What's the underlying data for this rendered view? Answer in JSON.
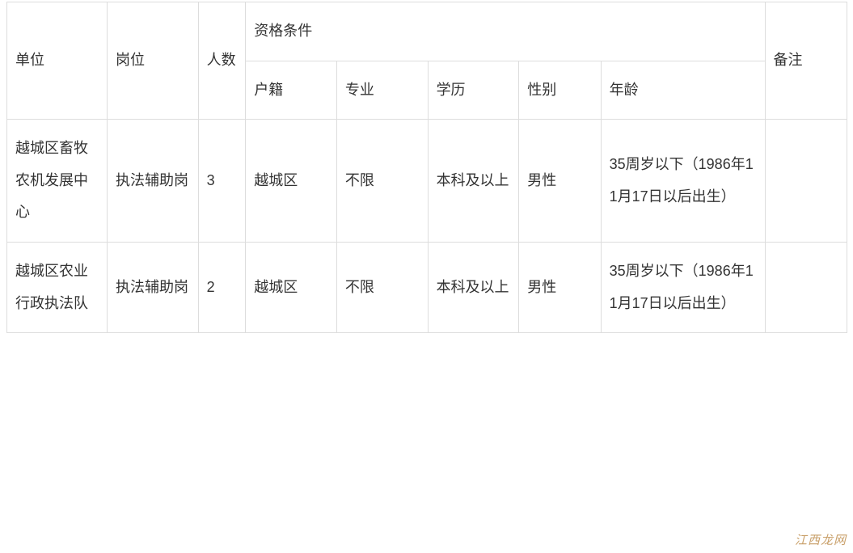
{
  "table": {
    "border_color": "#dddddd",
    "background_color": "#ffffff",
    "font_size": 18,
    "line_height": 2.2,
    "text_color": "#333333",
    "header": {
      "unit": "单位",
      "post": "岗位",
      "count": "人数",
      "qualify_group": "资格条件",
      "note": "备注",
      "sub": {
        "huji": "户籍",
        "zhuanye": "专业",
        "xueli": "学历",
        "gender": "性别",
        "age": "年龄"
      }
    },
    "rows": [
      {
        "unit": "越城区畜牧农机发展中心",
        "post": "执法辅助岗",
        "count": "3",
        "huji": "越城区",
        "zhuanye": "不限",
        "xueli": "本科及以上",
        "gender": "男性",
        "age": "35周岁以下（1986年11月17日以后出生）",
        "note": ""
      },
      {
        "unit": "越城区农业行政执法队",
        "post": "执法辅助岗",
        "count": "2",
        "huji": "越城区",
        "zhuanye": "不限",
        "xueli": "本科及以上",
        "gender": "男性",
        "age": "35周岁以下（1986年11月17日以后出生）",
        "note": ""
      }
    ]
  },
  "watermark": "江西龙网"
}
